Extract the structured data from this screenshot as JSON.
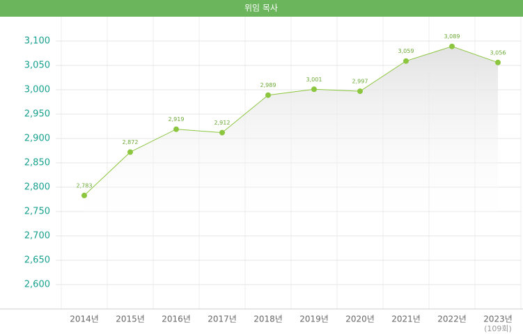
{
  "chart_data": {
    "type": "area-line",
    "title": "위임 목사",
    "categories": [
      "2014년",
      "2015년",
      "2016년",
      "2017년",
      "2018년",
      "2019년",
      "2020년",
      "2021년",
      "2022년",
      "2023년"
    ],
    "x_sublabel": "(109회)",
    "values": [
      2783,
      2872,
      2919,
      2912,
      2989,
      3001,
      2997,
      3059,
      3089,
      3056
    ],
    "value_labels": [
      "2,783",
      "2,872",
      "2,919",
      "2,912",
      "2,989",
      "3,001",
      "2,997",
      "3,059",
      "3,089",
      "3,056"
    ],
    "color": "#8cc63f",
    "ylim": [
      2550,
      3150
    ],
    "yticks": [
      {
        "value": 2600,
        "label": "2,600"
      },
      {
        "value": 2650,
        "label": "2,650"
      },
      {
        "value": 2700,
        "label": "2,700"
      },
      {
        "value": 2750,
        "label": "2,750"
      },
      {
        "value": 2800,
        "label": "2,800"
      },
      {
        "value": 2850,
        "label": "2,850"
      },
      {
        "value": 2900,
        "label": "2,900"
      },
      {
        "value": 2950,
        "label": "2,950"
      },
      {
        "value": 3000,
        "label": "3,000"
      },
      {
        "value": 3050,
        "label": "3,050"
      },
      {
        "value": 3100,
        "label": "3,100"
      }
    ],
    "grid": true
  }
}
